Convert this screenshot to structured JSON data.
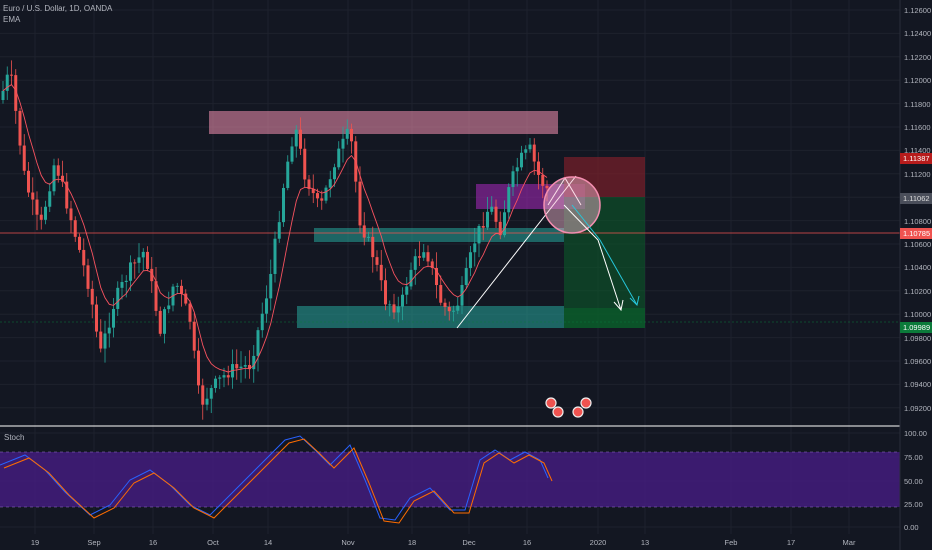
{
  "header": {
    "symbol_line": "Euro / U.S. Dollar, 1D, OANDA",
    "indicator": "EMA"
  },
  "stoch_panel": {
    "label": "Stoch"
  },
  "price_axis": {
    "ticks": [
      "1.12600",
      "1.12400",
      "1.12200",
      "1.12000",
      "1.11800",
      "1.11600",
      "1.11400",
      "1.11200",
      "1.11000",
      "1.10800",
      "1.10600",
      "1.10400",
      "1.10200",
      "1.10000",
      "1.09800",
      "1.09600",
      "1.09400",
      "1.09200"
    ]
  },
  "stoch_axis": {
    "ticks": [
      "100.00",
      "75.00",
      "50.00",
      "25.00",
      "0.00"
    ]
  },
  "badges": [
    {
      "label": "1.11387",
      "color": "#b71c1c"
    },
    {
      "label": "1.11062",
      "color": "#4a4e5a"
    },
    {
      "label": "1.10785",
      "color": "#ef5350"
    },
    {
      "label": "1.09989",
      "color": "#0b7a3a"
    }
  ],
  "time_axis": {
    "ticks": [
      "19",
      "Sep",
      "16",
      "Oct",
      "14",
      "Nov",
      "18",
      "Dec",
      "16",
      "2020",
      "13",
      "Feb",
      "17",
      "Mar"
    ]
  },
  "colors": {
    "bull": "#26a69a",
    "bear": "#ef5350",
    "ema": "#f7525f",
    "stoch_k": "#2962ff",
    "stoch_d": "#ff6d00",
    "resistance_zone": "#f48fb1",
    "support_zone": "#26a69a",
    "purple_zone": "#9c27b0",
    "stop_zone": "#7b1f2a",
    "target_zone": "#0b5e2a",
    "stoch_band": "#4a1d8a"
  }
}
